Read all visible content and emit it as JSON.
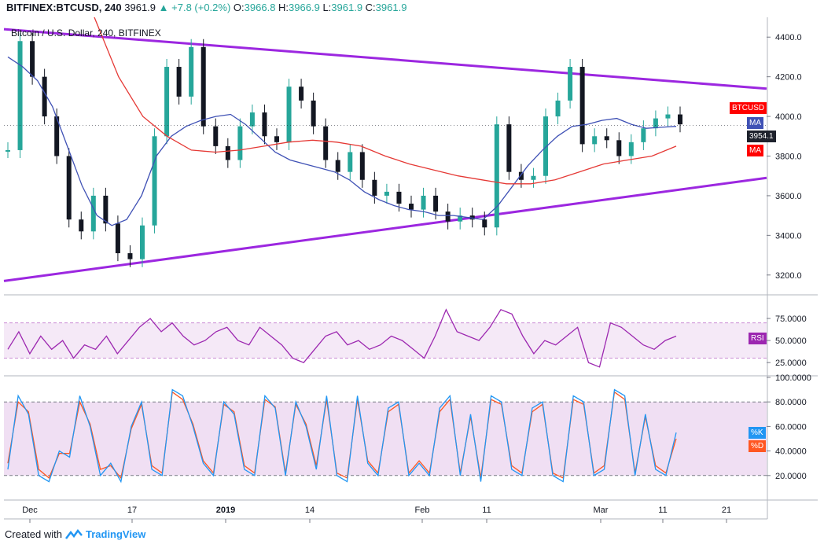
{
  "header": {
    "symbol": "BITFINEX:BTCUSD, 240",
    "last": "3961.9",
    "change": "▲ +7.8 (+0.2%)",
    "o_label": "O:",
    "o_val": "3966.8",
    "h_label": "H:",
    "h_val": "3966.9",
    "l_label": "L:",
    "l_val": "3961.9",
    "c_label": "C:",
    "c_val": "3961.9"
  },
  "subtitle": "Bitcoin / U.S. Dollar, 240, BITFINEX",
  "footer": {
    "created_with": "Created with",
    "brand": "TradingView"
  },
  "tags": {
    "btcusd": "BTCUSD",
    "ma_blue": "MA",
    "price": "3954.1",
    "ma_red": "MA",
    "rsi": "RSI",
    "k": "%K",
    "d": "%D"
  },
  "colors": {
    "up": "#26a69a",
    "down": "#131722",
    "trend": "#9c27e0",
    "ma_fast": "#3f51b5",
    "ma_slow": "#e53935",
    "rsi": "#9c27b0",
    "stoch_k": "#2196f3",
    "stoch_d": "#ff5722",
    "btc_tag": "#ff0000"
  },
  "chart_data": [
    {
      "type": "line",
      "title": "Bitcoin / U.S. Dollar, 240, BITFINEX",
      "ylim": [
        3100,
        4500
      ],
      "y_ticks": [
        3200,
        3400,
        3600,
        3800,
        4000,
        4200,
        4400
      ],
      "y_tick_labels": [
        "3200.0",
        "3400.0",
        "3600.0",
        "3800.0",
        "4000.0",
        "4200.0",
        "4400.0"
      ],
      "x_ticks": [
        "Dec",
        "17",
        "2019",
        "14",
        "Feb",
        "11",
        "Mar",
        "11",
        "21"
      ],
      "series": [
        {
          "name": "BTCUSD",
          "values": [
            3830,
            4380,
            4200,
            4000,
            3800,
            3480,
            3420,
            3600,
            3460,
            3310,
            3280,
            3450,
            3900,
            4250,
            4100,
            4350,
            3950,
            3850,
            3780,
            3950,
            4020,
            3900,
            3870,
            4150,
            4080,
            3950,
            3780,
            3720,
            3820,
            3680,
            3600,
            3620,
            3560,
            3530,
            3600,
            3520,
            3470,
            3500,
            3480,
            3440,
            3960,
            3720,
            3680,
            3700,
            4000,
            4080,
            4250,
            3860,
            3900,
            3880,
            3800,
            3870,
            3940,
            3990,
            4010,
            3960
          ]
        },
        {
          "name": "MA",
          "values": [
            4300,
            4250,
            4180,
            4050,
            3850,
            3650,
            3500,
            3450,
            3480,
            3600,
            3800,
            3900,
            3950,
            3980,
            4000,
            4010,
            3960,
            3890,
            3820,
            3780,
            3760,
            3740,
            3720,
            3680,
            3620,
            3580,
            3550,
            3530,
            3520,
            3500,
            3500,
            3490,
            3480,
            3550,
            3650,
            3750,
            3830,
            3900,
            3950,
            3960,
            3980,
            3990,
            3960,
            3940,
            3945,
            3950
          ]
        },
        {
          "name": "MA",
          "values": [
            4500,
            4200,
            4000,
            3900,
            3830,
            3820,
            3830,
            3850,
            3870,
            3880,
            3870,
            3850,
            3800,
            3760,
            3730,
            3700,
            3680,
            3660,
            3660,
            3680,
            3720,
            3760,
            3780,
            3800,
            3850
          ]
        }
      ],
      "annotations": [
        "trendline-upper",
        "trendline-lower"
      ],
      "last_price": "3954.1"
    },
    {
      "type": "line",
      "ylim": [
        10,
        100
      ],
      "y_ticks": [
        25,
        50,
        75
      ],
      "y_tick_labels": [
        "25.0000",
        "50.0000",
        "75.0000"
      ],
      "bands": [
        30,
        70
      ],
      "series": [
        {
          "name": "RSI",
          "values": [
            40,
            60,
            35,
            55,
            40,
            50,
            30,
            45,
            40,
            55,
            35,
            50,
            65,
            75,
            60,
            70,
            55,
            45,
            50,
            60,
            65,
            50,
            45,
            65,
            55,
            45,
            30,
            25,
            40,
            55,
            60,
            45,
            50,
            40,
            45,
            55,
            50,
            40,
            30,
            55,
            85,
            60,
            55,
            50,
            65,
            85,
            80,
            55,
            35,
            50,
            45,
            55,
            65,
            25,
            20,
            70,
            65,
            55,
            45,
            40,
            50,
            55
          ]
        }
      ]
    },
    {
      "type": "line",
      "ylim": [
        0,
        100
      ],
      "y_ticks": [
        20,
        40,
        60,
        80,
        100
      ],
      "y_tick_labels": [
        "20.0000",
        "40.0000",
        "60.0000",
        "80.0000",
        "100.0000"
      ],
      "bands": [
        20,
        80
      ],
      "series": [
        {
          "name": "%K",
          "values": [
            25,
            85,
            70,
            20,
            15,
            40,
            35,
            85,
            60,
            20,
            30,
            15,
            60,
            80,
            25,
            20,
            90,
            85,
            60,
            30,
            20,
            80,
            70,
            25,
            20,
            85,
            75,
            20,
            80,
            60,
            25,
            85,
            20,
            15,
            85,
            30,
            20,
            75,
            80,
            20,
            30,
            20,
            75,
            85,
            20,
            70,
            15,
            85,
            80,
            25,
            20,
            75,
            80,
            20,
            15,
            85,
            80,
            20,
            25,
            90,
            85,
            20,
            70,
            25,
            20,
            55
          ]
        },
        {
          "name": "%D",
          "values": [
            30,
            80,
            72,
            25,
            18,
            38,
            38,
            80,
            62,
            25,
            28,
            18,
            58,
            78,
            28,
            22,
            88,
            82,
            62,
            32,
            22,
            78,
            72,
            28,
            22,
            82,
            76,
            22,
            78,
            62,
            28,
            82,
            22,
            18,
            82,
            32,
            22,
            72,
            78,
            22,
            32,
            22,
            72,
            82,
            22,
            68,
            18,
            82,
            78,
            28,
            22,
            72,
            78,
            22,
            18,
            82,
            78,
            22,
            28,
            88,
            82,
            22,
            68,
            28,
            22,
            50
          ]
        }
      ]
    }
  ]
}
